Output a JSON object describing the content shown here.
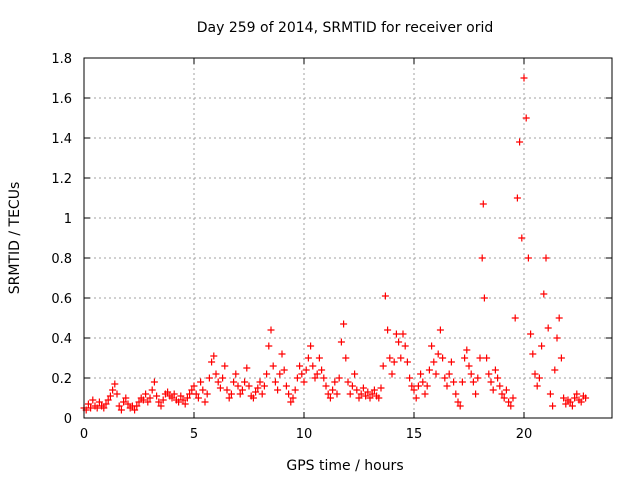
{
  "chart_data": {
    "type": "scatter",
    "title": "Day 259 of 2014, SRMTID for receiver orid",
    "xlabel": "GPS time / hours",
    "ylabel": "SRMTID / TECUs",
    "xlim": [
      0,
      24
    ],
    "ylim": [
      0,
      1.8
    ],
    "grid": true,
    "x_ticks": [
      0,
      5,
      10,
      15,
      20
    ],
    "x_tick_labels": [
      "0",
      "5",
      "10",
      "15",
      "20"
    ],
    "y_ticks": [
      0,
      0.2,
      0.4,
      0.6,
      0.8,
      1,
      1.2,
      1.4,
      1.6,
      1.8
    ],
    "y_tick_labels": [
      "0",
      "0.2",
      "0.4",
      "0.6",
      "0.8",
      "1",
      "1.2",
      "1.4",
      "1.6",
      "1.8"
    ],
    "marker": "+",
    "color": "#ff0000",
    "series": [
      {
        "name": "SRMTID",
        "points": [
          [
            0.0,
            0.05
          ],
          [
            0.1,
            0.04
          ],
          [
            0.2,
            0.07
          ],
          [
            0.3,
            0.05
          ],
          [
            0.4,
            0.09
          ],
          [
            0.5,
            0.06
          ],
          [
            0.6,
            0.05
          ],
          [
            0.7,
            0.08
          ],
          [
            0.8,
            0.06
          ],
          [
            0.9,
            0.05
          ],
          [
            1.0,
            0.07
          ],
          [
            1.1,
            0.09
          ],
          [
            1.2,
            0.11
          ],
          [
            1.3,
            0.14
          ],
          [
            1.4,
            0.17
          ],
          [
            1.5,
            0.12
          ],
          [
            1.6,
            0.06
          ],
          [
            1.7,
            0.04
          ],
          [
            1.8,
            0.08
          ],
          [
            1.9,
            0.1
          ],
          [
            2.0,
            0.07
          ],
          [
            2.1,
            0.05
          ],
          [
            2.2,
            0.06
          ],
          [
            2.3,
            0.04
          ],
          [
            2.4,
            0.06
          ],
          [
            2.5,
            0.08
          ],
          [
            2.6,
            0.1
          ],
          [
            2.7,
            0.09
          ],
          [
            2.8,
            0.12
          ],
          [
            2.9,
            0.08
          ],
          [
            3.0,
            0.1
          ],
          [
            3.1,
            0.14
          ],
          [
            3.2,
            0.18
          ],
          [
            3.3,
            0.11
          ],
          [
            3.4,
            0.08
          ],
          [
            3.5,
            0.06
          ],
          [
            3.6,
            0.09
          ],
          [
            3.7,
            0.12
          ],
          [
            3.8,
            0.13
          ],
          [
            3.9,
            0.11
          ],
          [
            4.0,
            0.1
          ],
          [
            4.1,
            0.12
          ],
          [
            4.2,
            0.09
          ],
          [
            4.3,
            0.08
          ],
          [
            4.4,
            0.11
          ],
          [
            4.5,
            0.09
          ],
          [
            4.6,
            0.07
          ],
          [
            4.7,
            0.1
          ],
          [
            4.8,
            0.12
          ],
          [
            4.9,
            0.14
          ],
          [
            5.0,
            0.16
          ],
          [
            5.1,
            0.12
          ],
          [
            5.2,
            0.1
          ],
          [
            5.3,
            0.18
          ],
          [
            5.4,
            0.14
          ],
          [
            5.5,
            0.08
          ],
          [
            5.6,
            0.12
          ],
          [
            5.7,
            0.2
          ],
          [
            5.8,
            0.28
          ],
          [
            5.9,
            0.31
          ],
          [
            6.0,
            0.22
          ],
          [
            6.1,
            0.18
          ],
          [
            6.2,
            0.15
          ],
          [
            6.3,
            0.2
          ],
          [
            6.4,
            0.26
          ],
          [
            6.5,
            0.14
          ],
          [
            6.6,
            0.1
          ],
          [
            6.7,
            0.12
          ],
          [
            6.8,
            0.18
          ],
          [
            6.9,
            0.22
          ],
          [
            7.0,
            0.16
          ],
          [
            7.1,
            0.12
          ],
          [
            7.2,
            0.14
          ],
          [
            7.3,
            0.18
          ],
          [
            7.4,
            0.25
          ],
          [
            7.5,
            0.16
          ],
          [
            7.6,
            0.11
          ],
          [
            7.7,
            0.1
          ],
          [
            7.8,
            0.13
          ],
          [
            7.9,
            0.15
          ],
          [
            8.0,
            0.18
          ],
          [
            8.1,
            0.12
          ],
          [
            8.2,
            0.16
          ],
          [
            8.3,
            0.22
          ],
          [
            8.4,
            0.36
          ],
          [
            8.5,
            0.44
          ],
          [
            8.6,
            0.26
          ],
          [
            8.7,
            0.18
          ],
          [
            8.8,
            0.14
          ],
          [
            8.9,
            0.22
          ],
          [
            9.0,
            0.32
          ],
          [
            9.1,
            0.24
          ],
          [
            9.2,
            0.16
          ],
          [
            9.3,
            0.12
          ],
          [
            9.4,
            0.08
          ],
          [
            9.5,
            0.1
          ],
          [
            9.6,
            0.14
          ],
          [
            9.7,
            0.2
          ],
          [
            9.8,
            0.26
          ],
          [
            9.9,
            0.22
          ],
          [
            10.0,
            0.18
          ],
          [
            10.1,
            0.24
          ],
          [
            10.2,
            0.3
          ],
          [
            10.3,
            0.36
          ],
          [
            10.4,
            0.26
          ],
          [
            10.5,
            0.2
          ],
          [
            10.6,
            0.22
          ],
          [
            10.7,
            0.3
          ],
          [
            10.8,
            0.24
          ],
          [
            10.9,
            0.2
          ],
          [
            11.0,
            0.16
          ],
          [
            11.1,
            0.12
          ],
          [
            11.2,
            0.1
          ],
          [
            11.3,
            0.14
          ],
          [
            11.4,
            0.18
          ],
          [
            11.5,
            0.12
          ],
          [
            11.6,
            0.2
          ],
          [
            11.7,
            0.38
          ],
          [
            11.8,
            0.47
          ],
          [
            11.9,
            0.3
          ],
          [
            12.0,
            0.18
          ],
          [
            12.1,
            0.12
          ],
          [
            12.2,
            0.16
          ],
          [
            12.3,
            0.22
          ],
          [
            12.4,
            0.14
          ],
          [
            12.5,
            0.1
          ],
          [
            12.6,
            0.12
          ],
          [
            12.7,
            0.15
          ],
          [
            12.8,
            0.11
          ],
          [
            12.9,
            0.13
          ],
          [
            13.0,
            0.1
          ],
          [
            13.1,
            0.12
          ],
          [
            13.2,
            0.14
          ],
          [
            13.3,
            0.11
          ],
          [
            13.4,
            0.1
          ],
          [
            13.5,
            0.15
          ],
          [
            13.6,
            0.26
          ],
          [
            13.7,
            0.61
          ],
          [
            13.8,
            0.44
          ],
          [
            13.9,
            0.3
          ],
          [
            14.0,
            0.22
          ],
          [
            14.1,
            0.28
          ],
          [
            14.2,
            0.42
          ],
          [
            14.3,
            0.38
          ],
          [
            14.4,
            0.3
          ],
          [
            14.5,
            0.42
          ],
          [
            14.6,
            0.36
          ],
          [
            14.7,
            0.28
          ],
          [
            14.8,
            0.2
          ],
          [
            14.9,
            0.16
          ],
          [
            15.0,
            0.14
          ],
          [
            15.1,
            0.1
          ],
          [
            15.2,
            0.16
          ],
          [
            15.3,
            0.22
          ],
          [
            15.4,
            0.18
          ],
          [
            15.5,
            0.12
          ],
          [
            15.6,
            0.16
          ],
          [
            15.7,
            0.24
          ],
          [
            15.8,
            0.36
          ],
          [
            15.9,
            0.28
          ],
          [
            16.0,
            0.22
          ],
          [
            16.1,
            0.32
          ],
          [
            16.2,
            0.44
          ],
          [
            16.3,
            0.3
          ],
          [
            16.4,
            0.2
          ],
          [
            16.5,
            0.16
          ],
          [
            16.6,
            0.22
          ],
          [
            16.7,
            0.28
          ],
          [
            16.8,
            0.18
          ],
          [
            16.9,
            0.12
          ],
          [
            17.0,
            0.08
          ],
          [
            17.1,
            0.06
          ],
          [
            17.2,
            0.18
          ],
          [
            17.3,
            0.3
          ],
          [
            17.4,
            0.34
          ],
          [
            17.5,
            0.26
          ],
          [
            17.6,
            0.22
          ],
          [
            17.7,
            0.18
          ],
          [
            17.8,
            0.12
          ],
          [
            17.9,
            0.2
          ],
          [
            18.0,
            0.3
          ],
          [
            18.1,
            0.8
          ],
          [
            18.15,
            1.07
          ],
          [
            18.2,
            0.6
          ],
          [
            18.3,
            0.3
          ],
          [
            18.4,
            0.22
          ],
          [
            18.5,
            0.18
          ],
          [
            18.6,
            0.14
          ],
          [
            18.7,
            0.24
          ],
          [
            18.8,
            0.2
          ],
          [
            18.9,
            0.16
          ],
          [
            19.0,
            0.12
          ],
          [
            19.1,
            0.1
          ],
          [
            19.2,
            0.14
          ],
          [
            19.3,
            0.08
          ],
          [
            19.4,
            0.06
          ],
          [
            19.5,
            0.1
          ],
          [
            19.6,
            0.5
          ],
          [
            19.7,
            1.1
          ],
          [
            19.8,
            1.38
          ],
          [
            19.9,
            0.9
          ],
          [
            20.0,
            1.7
          ],
          [
            20.1,
            1.5
          ],
          [
            20.2,
            0.8
          ],
          [
            20.3,
            0.42
          ],
          [
            20.4,
            0.32
          ],
          [
            20.5,
            0.22
          ],
          [
            20.6,
            0.16
          ],
          [
            20.7,
            0.2
          ],
          [
            20.8,
            0.36
          ],
          [
            20.9,
            0.62
          ],
          [
            21.0,
            0.8
          ],
          [
            21.1,
            0.45
          ],
          [
            21.2,
            0.12
          ],
          [
            21.3,
            0.06
          ],
          [
            21.4,
            0.24
          ],
          [
            21.5,
            0.4
          ],
          [
            21.6,
            0.5
          ],
          [
            21.7,
            0.3
          ],
          [
            21.8,
            0.1
          ],
          [
            21.9,
            0.07
          ],
          [
            22.0,
            0.09
          ],
          [
            22.1,
            0.08
          ],
          [
            22.2,
            0.06
          ],
          [
            22.3,
            0.1
          ],
          [
            22.4,
            0.12
          ],
          [
            22.5,
            0.09
          ],
          [
            22.6,
            0.08
          ],
          [
            22.7,
            0.11
          ],
          [
            22.8,
            0.1
          ]
        ]
      }
    ]
  }
}
